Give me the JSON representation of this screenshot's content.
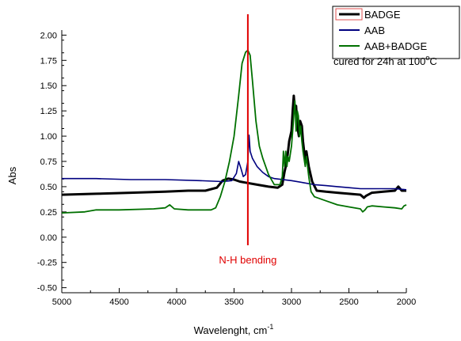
{
  "chart_data": {
    "type": "line",
    "title": "",
    "xlabel": "Wavelenght, cm",
    "xlabel_sup": "-1",
    "ylabel": "Abs",
    "xlim": [
      5000,
      2000
    ],
    "ylim": [
      -0.55,
      2.05
    ],
    "x_ticks": [
      5000,
      4500,
      4000,
      3500,
      3000,
      2500,
      2000
    ],
    "y_ticks": [
      -0.5,
      -0.25,
      0.0,
      0.25,
      0.5,
      0.75,
      1.0,
      1.25,
      1.5,
      1.75,
      2.0
    ],
    "x_tick_labels": [
      "5000",
      "4500",
      "4000",
      "3500",
      "3000",
      "2500",
      "2000"
    ],
    "y_tick_labels": [
      "-0.50",
      "-0.25",
      "0.00",
      "0.25",
      "0.50",
      "0.75",
      "1.00",
      "1.25",
      "1.50",
      "1.75",
      "2.00"
    ],
    "grid": false,
    "legend": {
      "placement": "top-right",
      "entries": [
        "BADGE",
        "AAB",
        "AAB+BADGE"
      ],
      "note_main": "cured for 24h at 100",
      "note_sup": "o",
      "note_end": "C"
    },
    "annotations": [
      {
        "type": "vline",
        "x": 3380,
        "color": "#e00000",
        "label": "N-H bending"
      }
    ],
    "series": [
      {
        "name": "BADGE",
        "color": "#000000",
        "points": [
          [
            5000,
            0.42
          ],
          [
            4700,
            0.43
          ],
          [
            4400,
            0.44
          ],
          [
            4100,
            0.45
          ],
          [
            3900,
            0.46
          ],
          [
            3750,
            0.46
          ],
          [
            3650,
            0.49
          ],
          [
            3600,
            0.56
          ],
          [
            3550,
            0.58
          ],
          [
            3500,
            0.57
          ],
          [
            3450,
            0.55
          ],
          [
            3400,
            0.54
          ],
          [
            3300,
            0.52
          ],
          [
            3200,
            0.5
          ],
          [
            3120,
            0.49
          ],
          [
            3080,
            0.52
          ],
          [
            3060,
            0.65
          ],
          [
            3040,
            0.75
          ],
          [
            3020,
            0.95
          ],
          [
            3000,
            1.05
          ],
          [
            2990,
            1.25
          ],
          [
            2980,
            1.4
          ],
          [
            2970,
            1.25
          ],
          [
            2960,
            1.3
          ],
          [
            2950,
            1.1
          ],
          [
            2935,
            1.0
          ],
          [
            2925,
            1.15
          ],
          [
            2910,
            1.1
          ],
          [
            2900,
            0.95
          ],
          [
            2880,
            0.75
          ],
          [
            2870,
            0.85
          ],
          [
            2850,
            0.7
          ],
          [
            2820,
            0.55
          ],
          [
            2780,
            0.46
          ],
          [
            2700,
            0.45
          ],
          [
            2600,
            0.44
          ],
          [
            2500,
            0.43
          ],
          [
            2400,
            0.42
          ],
          [
            2370,
            0.39
          ],
          [
            2350,
            0.41
          ],
          [
            2300,
            0.44
          ],
          [
            2200,
            0.45
          ],
          [
            2100,
            0.46
          ],
          [
            2070,
            0.5
          ],
          [
            2040,
            0.46
          ],
          [
            2000,
            0.46
          ]
        ]
      },
      {
        "name": "AAB",
        "color": "#000080",
        "points": [
          [
            5000,
            0.58
          ],
          [
            4700,
            0.58
          ],
          [
            4400,
            0.57
          ],
          [
            4100,
            0.57
          ],
          [
            3800,
            0.56
          ],
          [
            3600,
            0.55
          ],
          [
            3520,
            0.56
          ],
          [
            3480,
            0.63
          ],
          [
            3460,
            0.75
          ],
          [
            3440,
            0.68
          ],
          [
            3420,
            0.6
          ],
          [
            3400,
            0.62
          ],
          [
            3380,
            0.75
          ],
          [
            3370,
            1.01
          ],
          [
            3360,
            0.85
          ],
          [
            3340,
            0.78
          ],
          [
            3300,
            0.7
          ],
          [
            3250,
            0.64
          ],
          [
            3200,
            0.6
          ],
          [
            3150,
            0.58
          ],
          [
            3000,
            0.56
          ],
          [
            2900,
            0.54
          ],
          [
            2800,
            0.52
          ],
          [
            2700,
            0.51
          ],
          [
            2600,
            0.5
          ],
          [
            2500,
            0.49
          ],
          [
            2400,
            0.48
          ],
          [
            2300,
            0.48
          ],
          [
            2200,
            0.48
          ],
          [
            2100,
            0.48
          ],
          [
            2000,
            0.47
          ]
        ]
      },
      {
        "name": "AAB+BADGE",
        "color": "#007000",
        "points": [
          [
            5000,
            0.24
          ],
          [
            4800,
            0.25
          ],
          [
            4700,
            0.27
          ],
          [
            4500,
            0.27
          ],
          [
            4200,
            0.28
          ],
          [
            4100,
            0.29
          ],
          [
            4060,
            0.32
          ],
          [
            4020,
            0.28
          ],
          [
            3900,
            0.27
          ],
          [
            3800,
            0.27
          ],
          [
            3700,
            0.27
          ],
          [
            3660,
            0.29
          ],
          [
            3620,
            0.4
          ],
          [
            3580,
            0.55
          ],
          [
            3540,
            0.75
          ],
          [
            3500,
            1.0
          ],
          [
            3460,
            1.4
          ],
          [
            3430,
            1.72
          ],
          [
            3400,
            1.83
          ],
          [
            3380,
            1.85
          ],
          [
            3360,
            1.8
          ],
          [
            3340,
            1.55
          ],
          [
            3310,
            1.15
          ],
          [
            3280,
            0.9
          ],
          [
            3250,
            0.78
          ],
          [
            3200,
            0.62
          ],
          [
            3150,
            0.52
          ],
          [
            3100,
            0.52
          ],
          [
            3080,
            0.6
          ],
          [
            3070,
            0.85
          ],
          [
            3060,
            0.7
          ],
          [
            3050,
            0.85
          ],
          [
            3040,
            0.7
          ],
          [
            3030,
            0.8
          ],
          [
            3020,
            0.75
          ],
          [
            3000,
            0.9
          ],
          [
            2990,
            1.05
          ],
          [
            2980,
            1.2
          ],
          [
            2970,
            1.35
          ],
          [
            2960,
            1.05
          ],
          [
            2950,
            1.25
          ],
          [
            2940,
            1.2
          ],
          [
            2930,
            1.0
          ],
          [
            2920,
            1.1
          ],
          [
            2910,
            0.95
          ],
          [
            2900,
            0.85
          ],
          [
            2880,
            0.7
          ],
          [
            2870,
            0.8
          ],
          [
            2850,
            0.6
          ],
          [
            2830,
            0.45
          ],
          [
            2800,
            0.4
          ],
          [
            2700,
            0.36
          ],
          [
            2600,
            0.32
          ],
          [
            2500,
            0.3
          ],
          [
            2400,
            0.28
          ],
          [
            2380,
            0.25
          ],
          [
            2360,
            0.27
          ],
          [
            2340,
            0.3
          ],
          [
            2300,
            0.31
          ],
          [
            2200,
            0.3
          ],
          [
            2100,
            0.29
          ],
          [
            2040,
            0.28
          ],
          [
            2020,
            0.31
          ],
          [
            2000,
            0.32
          ]
        ]
      }
    ]
  }
}
